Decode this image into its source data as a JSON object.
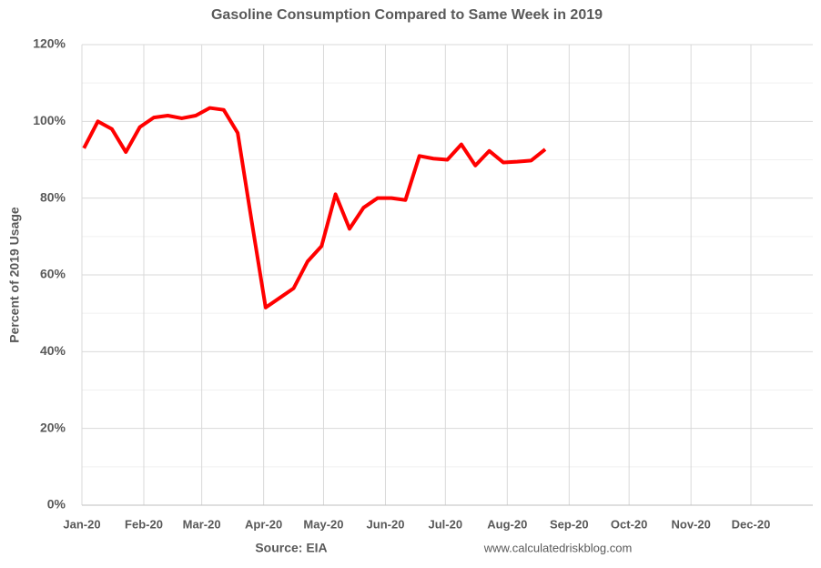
{
  "chart_data": {
    "type": "line",
    "title": "Gasoline Consumption Compared to Same Week in 2019",
    "ylabel": "Percent of 2019 Usage",
    "annotations": [
      "Source: EIA",
      "www.calculatedriskblog.com"
    ],
    "xlim": [
      0,
      366
    ],
    "xticks": [
      {
        "value": 0,
        "label": "Jan-20"
      },
      {
        "value": 31,
        "label": "Feb-20"
      },
      {
        "value": 60,
        "label": "Mar-20"
      },
      {
        "value": 91,
        "label": "Apr-20"
      },
      {
        "value": 121,
        "label": "May-20"
      },
      {
        "value": 152,
        "label": "Jun-20"
      },
      {
        "value": 182,
        "label": "Jul-20"
      },
      {
        "value": 213,
        "label": "Aug-20"
      },
      {
        "value": 244,
        "label": "Sep-20"
      },
      {
        "value": 274,
        "label": "Oct-20"
      },
      {
        "value": 305,
        "label": "Nov-20"
      },
      {
        "value": 335,
        "label": "Dec-20"
      }
    ],
    "ylim": [
      0,
      120
    ],
    "yticks": [
      {
        "value": 0,
        "label": "0%"
      },
      {
        "value": 20,
        "label": "20%"
      },
      {
        "value": 40,
        "label": "40%"
      },
      {
        "value": 60,
        "label": "60%"
      },
      {
        "value": 80,
        "label": "80%"
      },
      {
        "value": 100,
        "label": "100%"
      },
      {
        "value": 120,
        "label": "120%"
      }
    ],
    "yminorticks": [
      10,
      30,
      50,
      70,
      90,
      110
    ],
    "grid": true,
    "x": [
      1,
      8,
      15,
      22,
      29,
      36,
      43,
      50,
      57,
      64,
      71,
      78,
      85,
      92,
      99,
      106,
      113,
      120,
      127,
      134,
      141,
      148,
      155,
      162,
      169,
      176,
      183,
      190,
      197,
      204,
      211,
      218,
      225,
      232
    ],
    "series": [
      {
        "name": "Gasoline Consumption",
        "color": "#ff0000",
        "values": [
          93,
          100,
          98,
          92,
          98.5,
          101,
          101.5,
          100.8,
          101.5,
          103.5,
          103,
          97,
          74,
          51.5,
          54,
          56.5,
          63.5,
          67.5,
          81,
          72,
          77.5,
          80,
          80,
          79.5,
          91,
          90.3,
          90,
          94,
          88.5,
          92.3,
          89.3,
          89.5,
          89.8,
          92.7
        ]
      }
    ]
  }
}
